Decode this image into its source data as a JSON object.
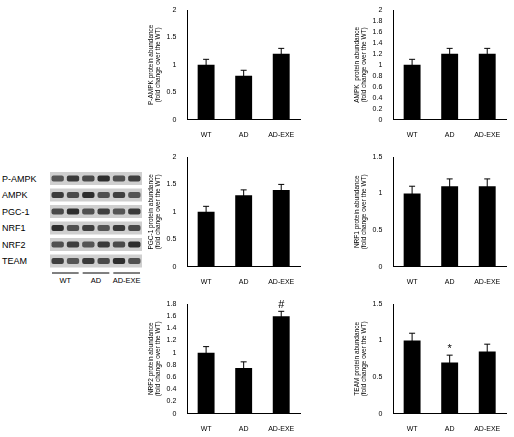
{
  "chart_data": [
    {
      "type": "bar",
      "ylabel": [
        "P-AMPK protein abundance",
        "(fold change over the WT)"
      ],
      "categories": [
        "WT",
        "AD",
        "AD-EXE"
      ],
      "values": [
        1.0,
        0.8,
        1.2
      ],
      "errors": [
        0.1,
        0.1,
        0.1
      ],
      "color": "#000000",
      "ylim": [
        0,
        2
      ],
      "yticks": [
        0,
        0.5,
        1,
        1.5,
        2
      ],
      "grid": false
    },
    {
      "type": "bar",
      "ylabel": [
        "AMPK  protein abundance",
        "(fold change over the WT)"
      ],
      "categories": [
        "WT",
        "AD",
        "AD-EXE"
      ],
      "values": [
        1.0,
        1.2,
        1.2
      ],
      "errors": [
        0.1,
        0.1,
        0.1
      ],
      "color": "#000000",
      "ylim": [
        0,
        2
      ],
      "yticks": [
        0,
        0.2,
        0.4,
        0.6,
        0.8,
        1,
        1.2,
        1.4,
        1.6,
        1.8,
        2
      ],
      "grid": false
    },
    {
      "type": "bar",
      "ylabel": [
        "PGC-1 protein abundance",
        "(fold change over the WT)"
      ],
      "categories": [
        "WT",
        "AD",
        "AD-EXE"
      ],
      "values": [
        1.0,
        1.3,
        1.4
      ],
      "errors": [
        0.1,
        0.1,
        0.1
      ],
      "color": "#000000",
      "ylim": [
        0,
        2
      ],
      "yticks": [
        0,
        0.5,
        1,
        1.5,
        2
      ],
      "grid": false
    },
    {
      "type": "bar",
      "ylabel": [
        "NRF1 protein abundance",
        "(fold change over the WT)"
      ],
      "categories": [
        "WT",
        "AD",
        "AD-EXE"
      ],
      "values": [
        1.0,
        1.1,
        1.1
      ],
      "errors": [
        0.1,
        0.1,
        0.1
      ],
      "color": "#000000",
      "ylim": [
        0,
        1.5
      ],
      "yticks": [
        0,
        0.5,
        1,
        1.5
      ],
      "grid": false
    },
    {
      "type": "bar",
      "ylabel": [
        "NRF2 protein abundance",
        "(fold change over the WT)"
      ],
      "categories": [
        "WT",
        "AD",
        "AD-EXE"
      ],
      "values": [
        1.0,
        0.75,
        1.6
      ],
      "errors": [
        0.1,
        0.1,
        0.08
      ],
      "color": "#000000",
      "ylim": [
        0,
        1.8
      ],
      "yticks": [
        0,
        0.2,
        0.4,
        0.6,
        0.8,
        1,
        1.2,
        1.4,
        1.6,
        1.8
      ],
      "grid": false,
      "annotations": [
        {
          "category": "AD-EXE",
          "text": "#"
        }
      ]
    },
    {
      "type": "bar",
      "ylabel": [
        "TEAM protein abundance",
        "(fold change over the WT)"
      ],
      "categories": [
        "WT",
        "AD",
        "AD-EXE"
      ],
      "values": [
        1.0,
        0.7,
        0.85
      ],
      "errors": [
        0.1,
        0.1,
        0.1
      ],
      "color": "#000000",
      "ylim": [
        0,
        1.5
      ],
      "yticks": [
        0,
        0.5,
        1,
        1.5
      ],
      "grid": false,
      "annotations": [
        {
          "category": "AD",
          "text": "*"
        }
      ]
    }
  ],
  "blot": {
    "rows": [
      "P-AMPK",
      "AMPK",
      "PGC-1",
      "NRF1",
      "NRF2",
      "TEAM"
    ],
    "groups": [
      "WT",
      "AD",
      "AD-EXE"
    ]
  }
}
